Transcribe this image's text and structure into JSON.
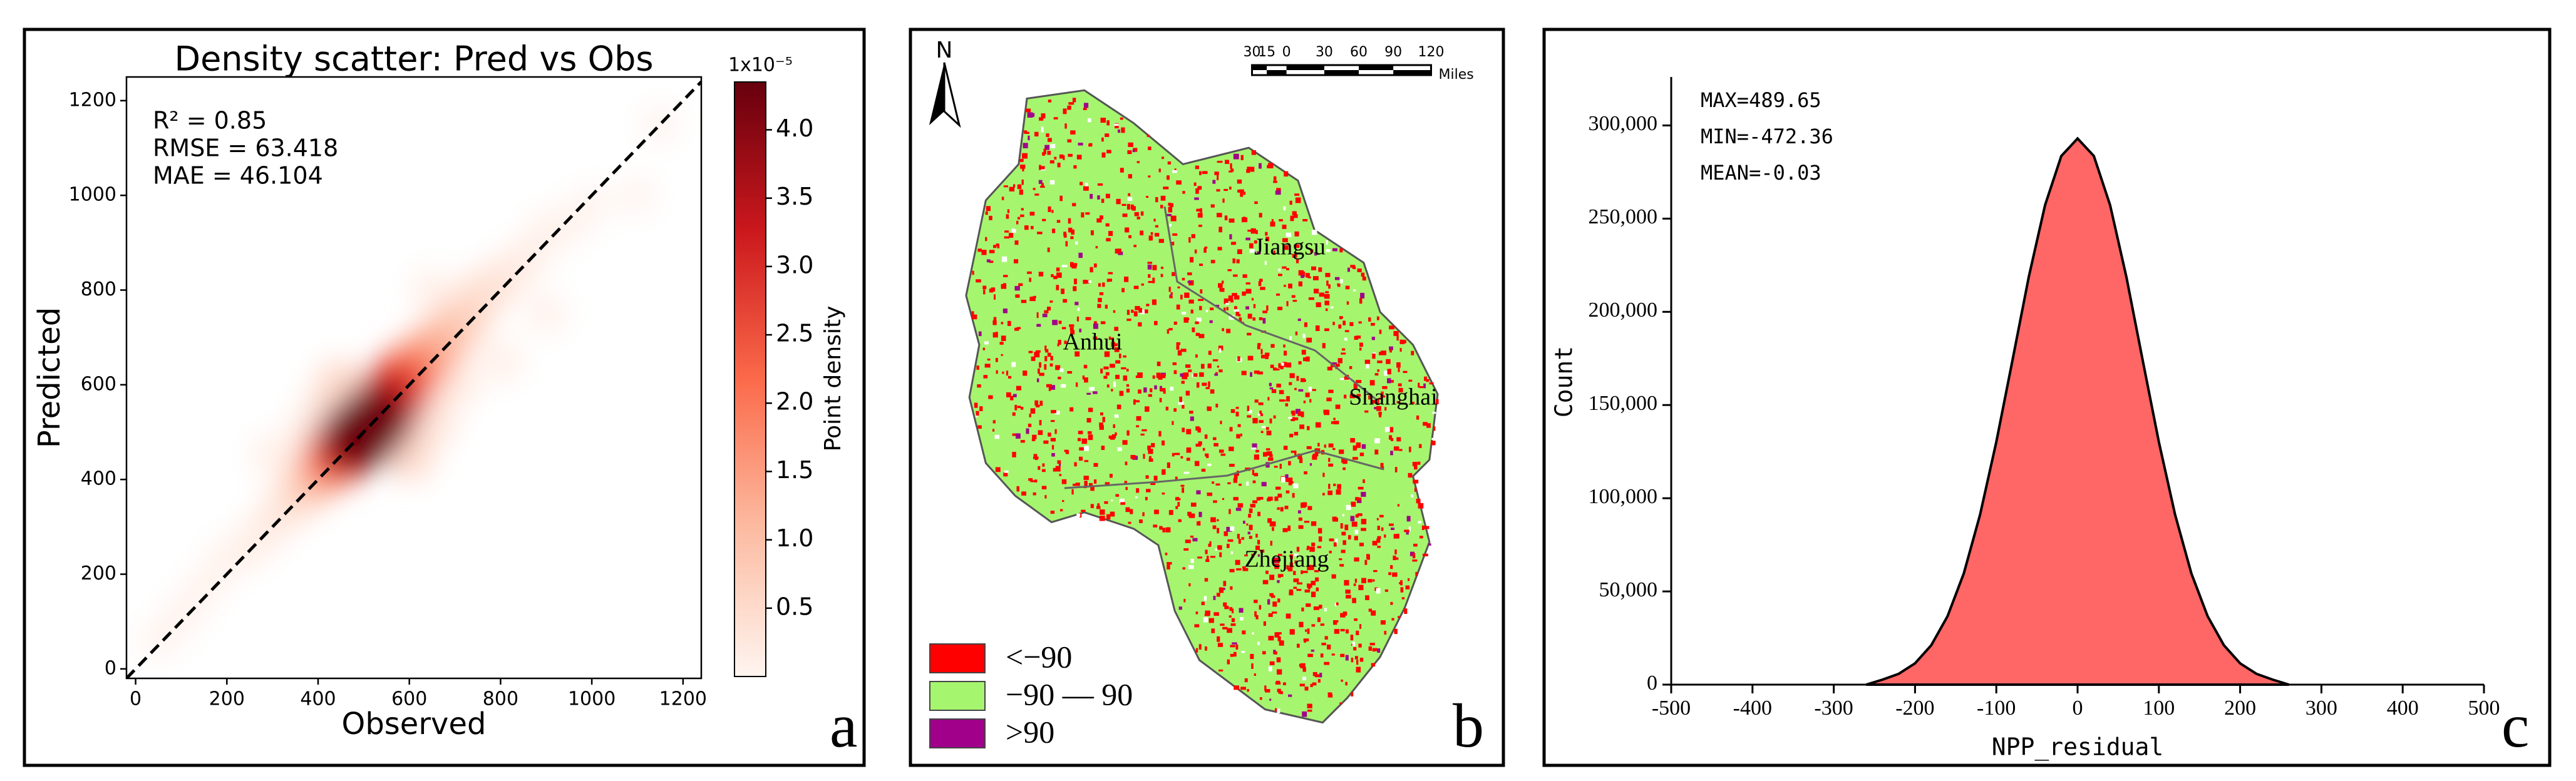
{
  "chart_data": [
    {
      "type": "scatter",
      "title": "Density scatter: Pred vs Obs",
      "x_label": "Observed",
      "y_label": "Predicted",
      "annotations": [
        "R² = 0.85",
        "RMSE = 63.418",
        "MAE = 46.104"
      ],
      "panel_label": "a",
      "x": [
        1150,
        1100,
        50,
        1000,
        100,
        150,
        950,
        900,
        200,
        900,
        800,
        300,
        650,
        250,
        850,
        300,
        700,
        380,
        800,
        650,
        420,
        760,
        350,
        600,
        450,
        720,
        380,
        680,
        400,
        420,
        640,
        600,
        440,
        580,
        460,
        560,
        540,
        480,
        520,
        500
      ],
      "y": [
        1150,
        1000,
        60,
        980,
        110,
        170,
        940,
        750,
        230,
        920,
        650,
        450,
        800,
        260,
        860,
        310,
        600,
        500,
        820,
        520,
        560,
        790,
        360,
        450,
        600,
        740,
        390,
        700,
        410,
        430,
        660,
        620,
        450,
        600,
        470,
        570,
        540,
        490,
        520,
        500
      ],
      "density": [
        0.01,
        0.01,
        0.02,
        0.02,
        0.03,
        0.04,
        0.04,
        0.05,
        0.06,
        0.08,
        0.1,
        0.1,
        0.1,
        0.12,
        0.15,
        0.2,
        0.2,
        0.2,
        0.25,
        0.3,
        0.3,
        0.4,
        0.4,
        0.5,
        0.5,
        0.6,
        0.6,
        0.9,
        0.9,
        1.3,
        1.3,
        1.8,
        2.0,
        2.3,
        2.8,
        2.9,
        3.4,
        3.6,
        4.1,
        4.3
      ],
      "xlim": [
        -20,
        1240
      ],
      "ylim": [
        -20,
        1250
      ],
      "xticks": [
        0,
        200,
        400,
        600,
        800,
        1000,
        1200
      ],
      "yticks": [
        0,
        200,
        400,
        600,
        800,
        1000,
        1200
      ],
      "identity_line": true,
      "colormap": [
        "#fff5f0",
        "#fcbba1",
        "#fb6a4a",
        "#cb181d",
        "#67000d"
      ],
      "colorbar": {
        "label": "Point density",
        "multiplier": "1x10⁻⁵",
        "lim": [
          0,
          4.35
        ],
        "ticks": [
          0.5,
          {
            "value": 1,
            "label": "1.0"
          },
          1.5,
          {
            "value": 2,
            "label": "2.0"
          },
          2.5,
          {
            "value": 3,
            "label": "3.0"
          },
          3.5,
          {
            "value": 4,
            "label": "4.0"
          }
        ]
      }
    },
    {
      "type": "area",
      "x_label": "NPP_residual",
      "y_label": "Count",
      "annotations": [
        "MAX=489.65",
        "MIN=-472.36",
        "MEAN=-0.03"
      ],
      "panel_label": "c",
      "x": [
        -260,
        -240,
        -220,
        -200,
        -180,
        -160,
        -140,
        -120,
        -100,
        -80,
        -60,
        -40,
        -20,
        0,
        20,
        40,
        60,
        80,
        100,
        120,
        140,
        160,
        180,
        200,
        220,
        240,
        260
      ],
      "values": [
        0,
        2700,
        5800,
        11400,
        21200,
        36700,
        59700,
        91100,
        130200,
        174300,
        218800,
        257300,
        283600,
        293000,
        283600,
        257300,
        218800,
        174300,
        130200,
        91100,
        59700,
        36700,
        21200,
        11400,
        5800,
        2700,
        0
      ],
      "color": "#ff6666",
      "xlim": [
        -500,
        500
      ],
      "xticks": [
        -500,
        -400,
        -300,
        -200,
        -100,
        0,
        100,
        200,
        300,
        400,
        500
      ],
      "ylim": [
        0,
        326000
      ],
      "yticks": [
        0,
        {
          "value": 50000,
          "label": "50,000"
        },
        {
          "value": 100000,
          "label": "100,000"
        },
        {
          "value": 150000,
          "label": "150,000"
        },
        {
          "value": 200000,
          "label": "200,000"
        },
        {
          "value": 250000,
          "label": "250,000"
        },
        {
          "value": 300000,
          "label": "300,000"
        }
      ]
    }
  ],
  "map": {
    "north": "N",
    "panel_label": "b",
    "regions": [
      "Jiangsu",
      "Anhui",
      "Shanghai",
      "Zhejiang"
    ],
    "scale_bar": {
      "labels": [
        "30",
        "15",
        "0",
        "30",
        "60",
        "90",
        "120"
      ],
      "unit": "Miles"
    },
    "legend": [
      {
        "label": "<−90",
        "color": "#ff0000"
      },
      {
        "label": "−90 — 90",
        "color": "#a6f56e"
      },
      {
        "label": ">90",
        "color": "#a0008a"
      }
    ]
  }
}
